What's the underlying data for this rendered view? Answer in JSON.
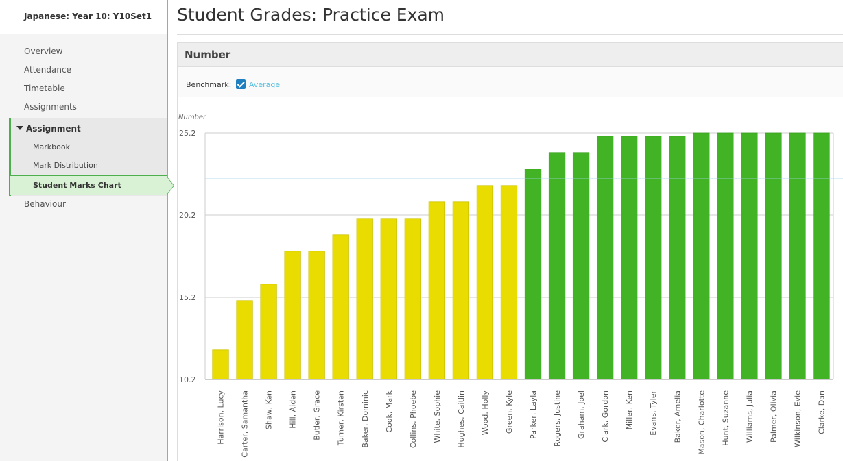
{
  "sidebar": {
    "course_title": "Japanese: Year 10: Y10Set1",
    "items": [
      "Overview",
      "Attendance",
      "Timetable",
      "Assignments"
    ],
    "group_label": "Assignment",
    "sub_items": [
      "Markbook",
      "Mark Distribution"
    ],
    "active_item": "Student Marks Chart",
    "after_item": "Behaviour"
  },
  "main": {
    "title": "Student Grades: Practice Exam",
    "panel_title": "Number",
    "benchmark_label": "Benchmark:",
    "benchmark_option": "Average",
    "benchmark_checked": true
  },
  "chart_data": {
    "type": "bar",
    "ylabel": "Number",
    "yticks": [
      "25.2",
      "20.2",
      "15.2",
      "10.2"
    ],
    "ylim": [
      10.2,
      25.2
    ],
    "benchmark_value": 22.4,
    "benchmark_color": "#9fd4e6",
    "colors": {
      "below": "#e8dc00",
      "above": "#42b324"
    },
    "categories": [
      "Harrison, Lucy",
      "Carter, Samantha",
      "Shaw, Ken",
      "Hill, Aiden",
      "Butler, Grace",
      "Turner, Kirsten",
      "Baker, Dominic",
      "Cook, Mark",
      "Collins, Phoebe",
      "White, Sophie",
      "Hughes, Caitlin",
      "Wood, Holly",
      "Green, Kyle",
      "Parker, Layla",
      "Rogers, Justine",
      "Graham, Joel",
      "Clark, Gordon",
      "Miller, Ken",
      "Evans, Tyler",
      "Baker, Amelia",
      "Mason, Charlotte",
      "Hunt, Suzanne",
      "Williams, Julia",
      "Palmer, Olivia",
      "Wilkinson, Evie",
      "Clarke, Dan"
    ],
    "values": [
      12.0,
      15.0,
      16.0,
      18.0,
      18.0,
      19.0,
      20.0,
      20.0,
      20.0,
      21.0,
      21.0,
      22.0,
      22.0,
      23.0,
      24.0,
      24.0,
      25.0,
      25.0,
      25.0,
      25.0,
      25.2,
      25.2,
      25.2,
      25.2,
      25.2,
      25.2
    ]
  }
}
